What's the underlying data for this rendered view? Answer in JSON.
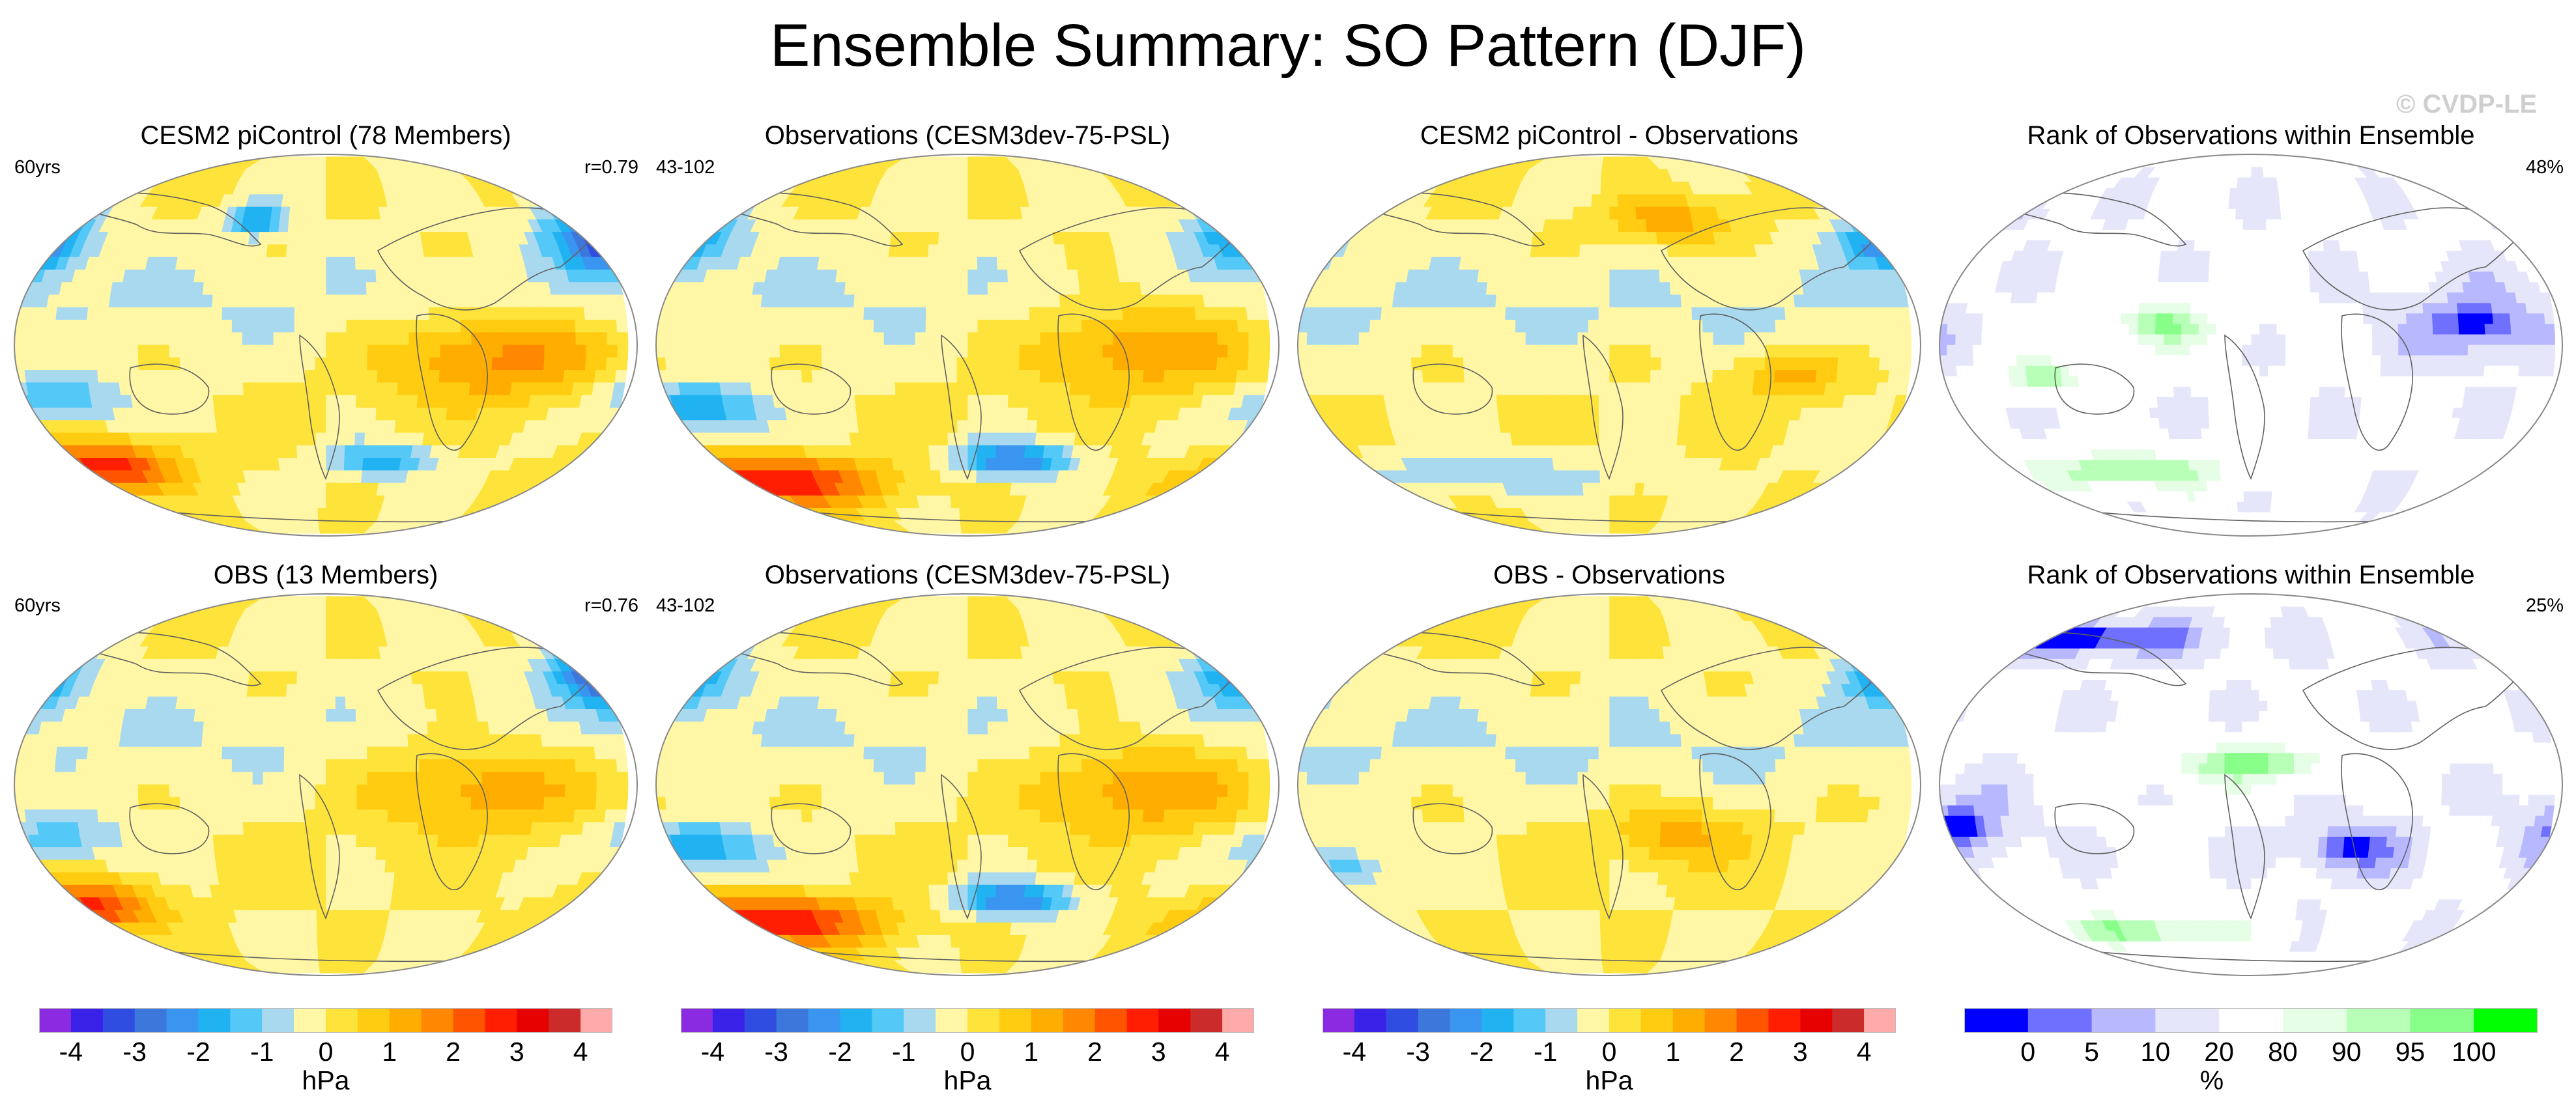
{
  "title": "Ensemble Summary: SO Pattern (DJF)",
  "watermark": "© CVDP-LE",
  "colors": {
    "pressure_scale": [
      "#8a2be2",
      "#3b22e8",
      "#2f4de0",
      "#3c78dc",
      "#3a95f0",
      "#21b2f2",
      "#54c8f6",
      "#a8d9ef",
      "#fff7a6",
      "#fde33a",
      "#ffcc11",
      "#ffad00",
      "#ff8800",
      "#ff5500",
      "#ff1f00",
      "#e60000",
      "#cc2b2b",
      "#ffaaaa"
    ],
    "rank_scale": [
      "#0000ff",
      "#7070ff",
      "#b8b8ff",
      "#e6e6fa",
      "#ffffff",
      "#e6fde6",
      "#b8ffb8",
      "#88ff88",
      "#00ff00"
    ],
    "coast": "#606060"
  },
  "chart_data": [
    {
      "type": "heatmap",
      "id": "cesm2-picontrol",
      "title": "CESM2 piControl (78 Members)",
      "left_label": "60yrs",
      "right_label": "r=0.79",
      "projection": "robinson",
      "colorbar": "pressure",
      "features": [
        {
          "name": "north-pacific-low",
          "kind": "low",
          "lon": -165,
          "lat": 50,
          "peak": -3.6,
          "rx": 32,
          "ry": 16
        },
        {
          "name": "atlantic-low",
          "kind": "low",
          "lon": -25,
          "lat": 60,
          "peak": -1.9,
          "rx": 20,
          "ry": 8
        },
        {
          "name": "indo-pacific-high",
          "kind": "high",
          "lon": 120,
          "lat": -5,
          "peak": 1.8,
          "rx": 68,
          "ry": 22
        },
        {
          "name": "southern-high",
          "kind": "high",
          "lon": -120,
          "lat": -58,
          "peak": 2.7,
          "rx": 46,
          "ry": 12
        },
        {
          "name": "south-indian-low",
          "kind": "low",
          "lon": 55,
          "lat": -55,
          "peak": -1.8,
          "rx": 34,
          "ry": 8
        },
        {
          "name": "south-pacific-low",
          "kind": "low",
          "lon": -140,
          "lat": -25,
          "peak": -1.6,
          "rx": 40,
          "ry": 12
        }
      ]
    },
    {
      "type": "heatmap",
      "id": "observations-1",
      "title": "Observations (CESM3dev-75-PSL)",
      "left_label": "43-102",
      "right_label": "",
      "projection": "robinson",
      "colorbar": "pressure",
      "features": [
        {
          "name": "north-pacific-low",
          "kind": "low",
          "lon": -160,
          "lat": 50,
          "peak": -2.3,
          "rx": 36,
          "ry": 14
        },
        {
          "name": "indo-pacific-high",
          "kind": "high",
          "lon": 120,
          "lat": 0,
          "peak": 1.6,
          "rx": 70,
          "ry": 24
        },
        {
          "name": "southern-high",
          "kind": "high",
          "lon": -110,
          "lat": -65,
          "peak": 3.0,
          "rx": 70,
          "ry": 12
        },
        {
          "name": "south-indian-low",
          "kind": "low",
          "lon": 50,
          "lat": -55,
          "peak": -2.6,
          "rx": 36,
          "ry": 8
        },
        {
          "name": "south-pacific-low",
          "kind": "low",
          "lon": -140,
          "lat": -30,
          "peak": -2.1,
          "rx": 38,
          "ry": 12
        }
      ]
    },
    {
      "type": "heatmap",
      "id": "cesm2-minus-obs",
      "title": "CESM2 piControl - Observations",
      "left_label": "",
      "right_label": "",
      "projection": "robinson",
      "colorbar": "pressure",
      "features": [
        {
          "name": "north-pacific-low",
          "kind": "low",
          "lon": -170,
          "lat": 48,
          "peak": -2.3,
          "rx": 24,
          "ry": 12
        },
        {
          "name": "eurasia-high",
          "kind": "high",
          "lon": 60,
          "lat": 60,
          "peak": 1.3,
          "rx": 40,
          "ry": 12
        },
        {
          "name": "australia-high",
          "kind": "high",
          "lon": 125,
          "lat": -15,
          "peak": 1.2,
          "rx": 30,
          "ry": 12
        },
        {
          "name": "southern-ocean-low",
          "kind": "low",
          "lon": -60,
          "lat": -62,
          "peak": -0.9,
          "rx": 90,
          "ry": 10
        }
      ]
    },
    {
      "type": "heatmap",
      "id": "rank-1",
      "title": "Rank of Observations within Ensemble",
      "left_label": "",
      "right_label": "48%",
      "projection": "robinson",
      "colorbar": "rank",
      "features": [
        {
          "name": "low-rank-west-pacific",
          "kind": "low-rank",
          "lon": 150,
          "lat": 10,
          "rank": 3,
          "rx": 55,
          "ry": 22
        },
        {
          "name": "low-rank-north-pacific",
          "kind": "low-rank",
          "lon": -150,
          "lat": 65,
          "rank": 8,
          "rx": 40,
          "ry": 10
        },
        {
          "name": "high-rank-atlantic",
          "kind": "high-rank",
          "lon": -30,
          "lat": 10,
          "rank": 97,
          "rx": 40,
          "ry": 14
        },
        {
          "name": "high-rank-southern",
          "kind": "high-rank",
          "lon": -60,
          "lat": -60,
          "rank": 97,
          "rx": 90,
          "ry": 12
        },
        {
          "name": "high-rank-east-pacific",
          "kind": "high-rank",
          "lon": -100,
          "lat": -15,
          "rank": 96,
          "rx": 30,
          "ry": 10
        }
      ]
    },
    {
      "type": "heatmap",
      "id": "obs-ensemble",
      "title": "OBS (13 Members)",
      "left_label": "60yrs",
      "right_label": "r=0.76",
      "projection": "robinson",
      "colorbar": "pressure",
      "features": [
        {
          "name": "north-pacific-low",
          "kind": "low",
          "lon": -165,
          "lat": 52,
          "peak": -3.2,
          "rx": 30,
          "ry": 16
        },
        {
          "name": "indo-pacific-high",
          "kind": "high",
          "lon": 110,
          "lat": 0,
          "peak": 1.5,
          "rx": 70,
          "ry": 24
        },
        {
          "name": "southern-high",
          "kind": "high",
          "lon": -130,
          "lat": -58,
          "peak": 2.6,
          "rx": 40,
          "ry": 12
        },
        {
          "name": "south-pacific-low",
          "kind": "low",
          "lon": -140,
          "lat": -25,
          "peak": -1.3,
          "rx": 40,
          "ry": 12
        }
      ]
    },
    {
      "type": "heatmap",
      "id": "observations-2",
      "title": "Observations (CESM3dev-75-PSL)",
      "left_label": "43-102",
      "right_label": "",
      "projection": "robinson",
      "colorbar": "pressure",
      "features": [
        {
          "name": "north-pacific-low",
          "kind": "low",
          "lon": -160,
          "lat": 50,
          "peak": -2.3,
          "rx": 36,
          "ry": 14
        },
        {
          "name": "indo-pacific-high",
          "kind": "high",
          "lon": 120,
          "lat": 0,
          "peak": 1.6,
          "rx": 70,
          "ry": 24
        },
        {
          "name": "southern-high",
          "kind": "high",
          "lon": -110,
          "lat": -65,
          "peak": 3.0,
          "rx": 70,
          "ry": 12
        },
        {
          "name": "south-indian-low",
          "kind": "low",
          "lon": 50,
          "lat": -55,
          "peak": -2.6,
          "rx": 36,
          "ry": 8
        },
        {
          "name": "south-pacific-low",
          "kind": "low",
          "lon": -140,
          "lat": -30,
          "peak": -2.1,
          "rx": 38,
          "ry": 12
        }
      ]
    },
    {
      "type": "heatmap",
      "id": "obs-minus-obs",
      "title": "OBS - Observations",
      "left_label": "",
      "right_label": "",
      "projection": "robinson",
      "colorbar": "pressure",
      "features": [
        {
          "name": "north-pacific-low",
          "kind": "low",
          "lon": -170,
          "lat": 50,
          "peak": -2.2,
          "rx": 22,
          "ry": 12
        },
        {
          "name": "arctic-high",
          "kind": "high",
          "lon": -150,
          "lat": 78,
          "peak": 1.1,
          "rx": 40,
          "ry": 8
        },
        {
          "name": "indian-high",
          "kind": "high",
          "lon": 60,
          "lat": -25,
          "peak": 1.2,
          "rx": 40,
          "ry": 14
        },
        {
          "name": "south-pacific-low",
          "kind": "low",
          "lon": -140,
          "lat": -40,
          "peak": -1.4,
          "rx": 25,
          "ry": 10
        }
      ]
    },
    {
      "type": "heatmap",
      "id": "rank-2",
      "title": "Rank of Observations within Ensemble",
      "left_label": "",
      "right_label": "25%",
      "projection": "robinson",
      "colorbar": "rank",
      "features": [
        {
          "name": "low-rank-north",
          "kind": "low-rank",
          "lon": -90,
          "lat": 70,
          "rank": 2,
          "rx": 110,
          "ry": 12
        },
        {
          "name": "low-rank-pacific",
          "kind": "low-rank",
          "lon": -150,
          "lat": -20,
          "rank": 2,
          "rx": 40,
          "ry": 20
        },
        {
          "name": "low-rank-indian",
          "kind": "low-rank",
          "lon": 80,
          "lat": -30,
          "rank": 2,
          "rx": 40,
          "ry": 16
        },
        {
          "name": "high-rank-tropics",
          "kind": "high-rank",
          "lon": 20,
          "lat": 10,
          "rank": 98,
          "rx": 70,
          "ry": 12
        },
        {
          "name": "high-rank-southern",
          "kind": "high-rank",
          "lon": -60,
          "lat": -70,
          "rank": 98,
          "rx": 90,
          "ry": 8
        }
      ]
    }
  ],
  "colorbars": [
    {
      "id": "cbar-1",
      "kind": "pressure",
      "ticks": [
        "-4",
        "-3",
        "-2",
        "-1",
        "0",
        "1",
        "2",
        "3",
        "4"
      ],
      "unit": "hPa"
    },
    {
      "id": "cbar-2",
      "kind": "pressure",
      "ticks": [
        "-4",
        "-3",
        "-2",
        "-1",
        "0",
        "1",
        "2",
        "3",
        "4"
      ],
      "unit": "hPa"
    },
    {
      "id": "cbar-3",
      "kind": "pressure",
      "ticks": [
        "-4",
        "-3",
        "-2",
        "-1",
        "0",
        "1",
        "2",
        "3",
        "4"
      ],
      "unit": "hPa"
    },
    {
      "id": "cbar-4",
      "kind": "rank",
      "ticks": [
        "0",
        "5",
        "10",
        "20",
        "80",
        "90",
        "95",
        "100"
      ],
      "unit": "%"
    }
  ]
}
